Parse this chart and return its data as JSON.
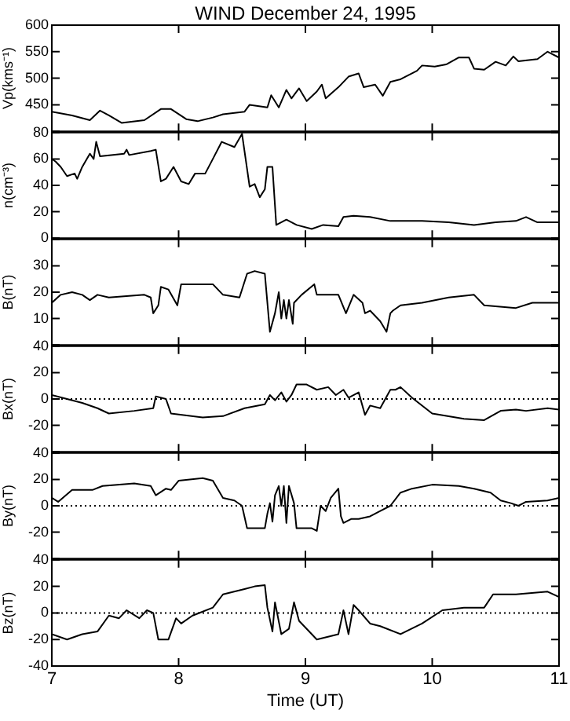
{
  "chart_data": [
    {
      "type": "line",
      "title": "WIND December 24, 1995",
      "ylabel": "Vp(kms⁻¹)",
      "xlim": [
        7,
        11
      ],
      "xticks": [
        7,
        8,
        9,
        10,
        11
      ],
      "ylim": [
        400,
        600
      ],
      "yticks": [
        {
          "value": 400,
          "label": null
        },
        450,
        500,
        550,
        600
      ],
      "tick_labels": "y",
      "color": "#000000",
      "x": [
        7.0,
        7.16,
        7.3,
        7.38,
        7.45,
        7.55,
        7.73,
        7.86,
        7.94,
        8.06,
        8.15,
        8.27,
        8.35,
        8.52,
        8.56,
        8.7,
        8.73,
        8.79,
        8.85,
        8.89,
        8.95,
        9.01,
        9.09,
        9.13,
        9.16,
        9.26,
        9.34,
        9.42,
        9.46,
        9.55,
        9.61,
        9.67,
        9.75,
        9.88,
        9.92,
        10.02,
        10.11,
        10.21,
        10.29,
        10.33,
        10.41,
        10.5,
        10.58,
        10.64,
        10.68,
        10.83,
        10.91,
        11.0
      ],
      "values": [
        437,
        430,
        421,
        439,
        430,
        416,
        421,
        442,
        442,
        423,
        419,
        426,
        432,
        437,
        450,
        445,
        468,
        445,
        478,
        462,
        481,
        457,
        475,
        488,
        462,
        483,
        503,
        509,
        483,
        488,
        467,
        493,
        498,
        514,
        524,
        522,
        526,
        539,
        539,
        518,
        516,
        531,
        524,
        541,
        532,
        536,
        550,
        539
      ]
    },
    {
      "type": "line",
      "ylabel": "n(cm⁻³)",
      "xlim": [
        7,
        11
      ],
      "xticks": [
        7,
        8,
        9,
        10,
        11
      ],
      "ylim": [
        0,
        80
      ],
      "yticks": [
        0,
        20,
        40,
        60,
        80
      ],
      "tick_labels": "y",
      "color": "#000000",
      "x": [
        7.0,
        7.03,
        7.07,
        7.12,
        7.18,
        7.2,
        7.24,
        7.3,
        7.33,
        7.35,
        7.38,
        7.57,
        7.59,
        7.61,
        7.78,
        7.82,
        7.86,
        7.9,
        7.96,
        8.02,
        8.08,
        8.13,
        8.21,
        8.27,
        8.34,
        8.44,
        8.5,
        8.56,
        8.6,
        8.64,
        8.68,
        8.7,
        8.74,
        8.77,
        8.85,
        8.93,
        9.05,
        9.14,
        9.26,
        9.3,
        9.38,
        9.51,
        9.67,
        9.92,
        10.13,
        10.33,
        10.5,
        10.66,
        10.74,
        10.83,
        11.0
      ],
      "values": [
        60,
        58,
        54,
        47,
        49,
        45,
        54,
        64,
        60,
        73,
        62,
        64,
        67,
        63,
        66,
        67,
        43,
        45,
        54,
        43,
        41,
        49,
        49,
        60,
        73,
        69,
        79,
        39,
        41,
        31,
        37,
        54,
        54,
        10,
        14,
        10,
        7,
        10,
        9,
        16,
        17,
        16,
        13,
        13,
        12,
        10,
        12,
        13,
        16,
        12,
        12
      ]
    },
    {
      "type": "line",
      "ylabel": "B(nT)",
      "xlim": [
        7,
        11
      ],
      "xticks": [
        7,
        8,
        9,
        10,
        11
      ],
      "ylim": [
        0,
        40
      ],
      "yticks": [
        {
          "value": 0,
          "label": null
        },
        10,
        20,
        30,
        {
          "value": 40,
          "label": null
        }
      ],
      "tick_labels": "y",
      "color": "#000000",
      "x": [
        7.0,
        7.07,
        7.16,
        7.24,
        7.3,
        7.36,
        7.45,
        7.73,
        7.78,
        7.8,
        7.84,
        7.86,
        7.92,
        7.99,
        8.02,
        8.27,
        8.35,
        8.48,
        8.54,
        8.6,
        8.68,
        8.72,
        8.76,
        8.79,
        8.81,
        8.83,
        8.85,
        8.87,
        8.9,
        8.91,
        8.97,
        9.07,
        9.09,
        9.26,
        9.32,
        9.38,
        9.45,
        9.47,
        9.51,
        9.59,
        9.64,
        9.67,
        9.69,
        9.75,
        9.92,
        10.13,
        10.33,
        10.41,
        10.66,
        10.79,
        11.0
      ],
      "values": [
        16,
        19,
        20,
        19,
        17,
        19,
        18,
        19,
        18,
        12,
        15,
        22,
        21,
        15,
        23,
        23,
        19,
        18,
        27,
        28,
        27,
        5,
        12,
        20,
        10,
        17,
        10,
        17,
        8,
        16,
        19,
        23,
        19,
        19,
        12,
        19,
        16,
        12,
        13,
        9,
        5,
        12,
        13,
        15,
        16,
        18,
        19,
        15,
        14,
        16,
        16
      ]
    },
    {
      "type": "line",
      "ylabel": "Bx(nT)",
      "xlim": [
        7,
        11
      ],
      "xticks": [
        7,
        8,
        9,
        10,
        11
      ],
      "ylim": [
        -40,
        40
      ],
      "yticks": [
        {
          "value": -40,
          "label": null
        },
        -20,
        0,
        20,
        40
      ],
      "tick_labels": "y",
      "color": "#000000",
      "ref_lines": [
        {
          "axis": "y",
          "value": 0,
          "line_style": "dotted"
        }
      ],
      "x": [
        7.0,
        7.12,
        7.24,
        7.36,
        7.45,
        7.65,
        7.8,
        7.82,
        7.9,
        7.94,
        8.19,
        8.35,
        8.52,
        8.68,
        8.72,
        8.76,
        8.81,
        8.85,
        8.89,
        8.93,
        9.01,
        9.09,
        9.18,
        9.24,
        9.3,
        9.34,
        9.42,
        9.47,
        9.51,
        9.59,
        9.67,
        9.71,
        9.75,
        9.84,
        10.0,
        10.25,
        10.41,
        10.54,
        10.66,
        10.74,
        10.91,
        11.0
      ],
      "values": [
        3,
        0,
        -3,
        -7,
        -11,
        -9,
        -7,
        2,
        0,
        -11,
        -14,
        -13,
        -7,
        -4,
        3,
        -1,
        5,
        -2,
        3,
        11,
        11,
        7,
        9,
        3,
        7,
        1,
        5,
        -12,
        -5,
        -7,
        7,
        7,
        9,
        1,
        -11,
        -15,
        -16,
        -9,
        -8,
        -9,
        -7,
        -8
      ]
    },
    {
      "type": "line",
      "ylabel": "By(nT)",
      "xlim": [
        7,
        11
      ],
      "xticks": [
        7,
        8,
        9,
        10,
        11
      ],
      "ylim": [
        -40,
        40
      ],
      "yticks": [
        {
          "value": -40,
          "label": null
        },
        -20,
        0,
        20,
        40
      ],
      "tick_labels": "y",
      "color": "#000000",
      "ref_lines": [
        {
          "axis": "y",
          "value": 0,
          "line_style": "dotted"
        }
      ],
      "x": [
        7.0,
        7.05,
        7.16,
        7.32,
        7.4,
        7.65,
        7.78,
        7.82,
        7.9,
        7.94,
        8.0,
        8.19,
        8.27,
        8.35,
        8.44,
        8.5,
        8.54,
        8.68,
        8.7,
        8.72,
        8.74,
        8.76,
        8.79,
        8.81,
        8.83,
        8.85,
        8.87,
        8.91,
        8.93,
        9.05,
        9.09,
        9.12,
        9.16,
        9.2,
        9.26,
        9.28,
        9.3,
        9.36,
        9.42,
        9.51,
        9.59,
        9.67,
        9.75,
        9.84,
        10.0,
        10.21,
        10.33,
        10.46,
        10.54,
        10.62,
        10.68,
        10.74,
        10.91,
        11.0
      ],
      "values": [
        6,
        3,
        12,
        12,
        15,
        17,
        15,
        8,
        13,
        12,
        19,
        21,
        19,
        6,
        4,
        0,
        -17,
        -17,
        -6,
        2,
        -12,
        8,
        15,
        0,
        15,
        -13,
        15,
        2,
        -17,
        -17,
        -19,
        0,
        -4,
        6,
        13,
        -8,
        -13,
        -10,
        -10,
        -8,
        -4,
        0,
        10,
        13,
        16,
        15,
        13,
        10,
        4,
        2,
        0,
        3,
        4,
        6
      ]
    },
    {
      "type": "line",
      "ylabel": "Bz(nT)",
      "xlabel": "Time (UT)",
      "xlim": [
        7,
        11
      ],
      "xticks": [
        7,
        8,
        9,
        10,
        11
      ],
      "ylim": [
        -40,
        40
      ],
      "yticks": [
        -40,
        -20,
        0,
        20,
        40
      ],
      "color": "#000000",
      "ref_lines": [
        {
          "axis": "y",
          "value": 0,
          "line_style": "dotted"
        }
      ],
      "x": [
        7.0,
        7.12,
        7.24,
        7.36,
        7.45,
        7.53,
        7.59,
        7.69,
        7.75,
        7.8,
        7.84,
        7.92,
        7.98,
        8.02,
        8.11,
        8.27,
        8.35,
        8.52,
        8.6,
        8.68,
        8.7,
        8.74,
        8.76,
        8.81,
        8.87,
        8.91,
        8.95,
        9.09,
        9.26,
        9.3,
        9.34,
        9.38,
        9.42,
        9.51,
        9.59,
        9.75,
        9.92,
        10.08,
        10.25,
        10.41,
        10.48,
        10.66,
        10.91,
        11.0
      ],
      "values": [
        -16,
        -20,
        -16,
        -14,
        -2,
        -4,
        2,
        -4,
        2,
        0,
        -20,
        -20,
        -4,
        -8,
        -2,
        4,
        14,
        18,
        20,
        21,
        4,
        -14,
        8,
        -16,
        -12,
        8,
        -6,
        -20,
        -16,
        2,
        -16,
        6,
        2,
        -8,
        -10,
        -16,
        -8,
        2,
        4,
        4,
        14,
        14,
        16,
        12
      ]
    }
  ]
}
